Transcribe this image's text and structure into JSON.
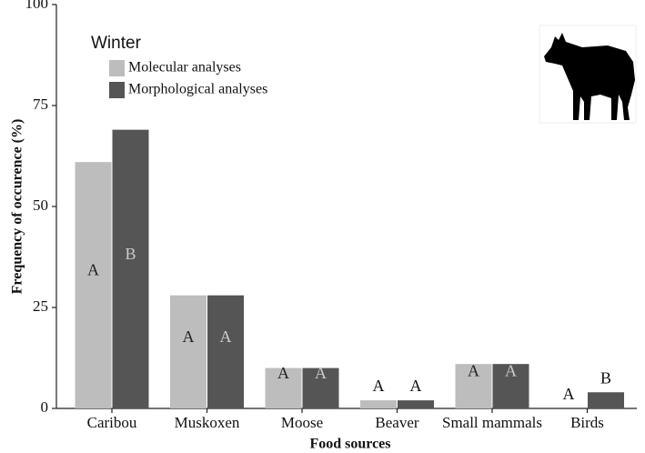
{
  "chart_data": {
    "type": "bar",
    "x_label": "Food sources",
    "y_label": "Frequency of occurence (%)",
    "legend_title": "Winter",
    "categories": [
      "Caribou",
      "Muskoxen",
      "Moose",
      "Beaver",
      "Small mammals",
      "Birds"
    ],
    "series": [
      {
        "name": "Molecular analyses",
        "color": "#bdbdbd",
        "values": [
          61,
          28,
          10,
          2,
          11,
          0
        ],
        "letters": [
          "A",
          "A",
          "A",
          "A",
          "A",
          "A"
        ]
      },
      {
        "name": "Morphological analyses",
        "color": "#555555",
        "values": [
          69,
          28,
          10,
          2,
          11,
          4
        ],
        "letters": [
          "B",
          "A",
          "A",
          "A",
          "A",
          "B"
        ]
      }
    ],
    "ylim": [
      0,
      100
    ],
    "yticks": [
      0,
      25,
      50,
      75,
      100
    ],
    "grid": false
  }
}
